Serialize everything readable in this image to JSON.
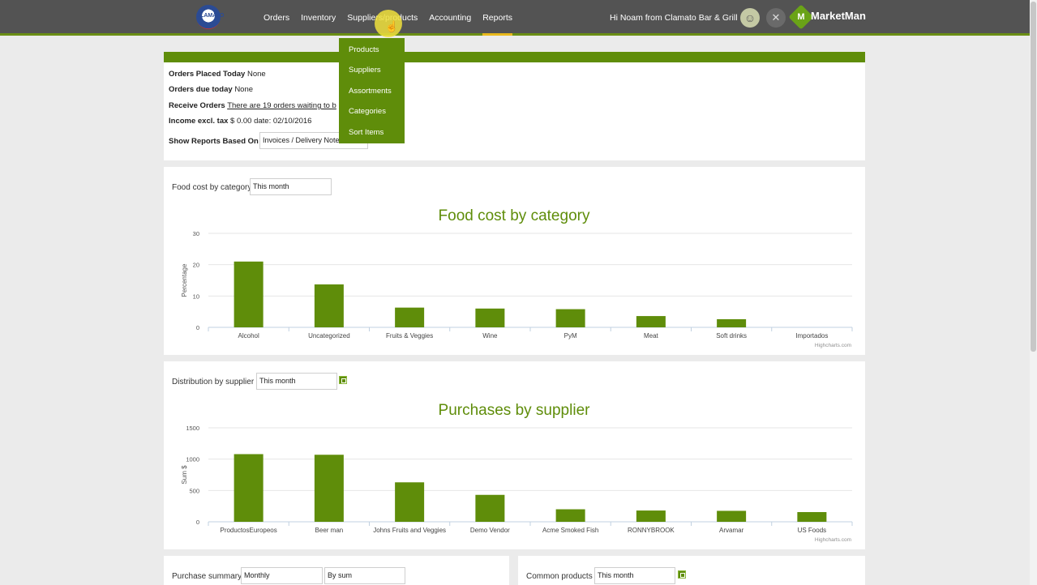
{
  "nav": {
    "logo_text": "CLAMATO",
    "items": [
      {
        "label": "Orders"
      },
      {
        "label": "Inventory"
      },
      {
        "label": "Suppliers/products"
      },
      {
        "label": "Accounting"
      },
      {
        "label": "Reports"
      }
    ],
    "greeting": "Hi Noam from Clamato Bar & Grill",
    "brand": "MarketMan"
  },
  "dropdown": {
    "items": [
      {
        "label": "Products"
      },
      {
        "label": "Suppliers"
      },
      {
        "label": "Assortments"
      },
      {
        "label": "Categories"
      },
      {
        "label": "Sort Items"
      }
    ]
  },
  "info": {
    "orders_placed_label": "Orders Placed Today",
    "orders_placed_value": "None",
    "orders_due_label": "Orders due today",
    "orders_due_value": "None",
    "receive_label": "Receive Orders",
    "receive_link": "There are 19 orders waiting to b",
    "income_label": "Income excl. tax",
    "income_value": "$ 0.00 date: 02/10/2016",
    "reports_based_label": "Show Reports Based On",
    "reports_based_value": "Invoices / Delivery Notes"
  },
  "food_cost": {
    "control_label": "Food cost by category",
    "period": "This month",
    "credit": "Highcharts.com"
  },
  "supplier": {
    "control_label": "Distribution by supplier",
    "period": "This month",
    "credit": "Highcharts.com"
  },
  "bottom": {
    "purchase_label": "Purchase summary",
    "purchase_period": "Monthly",
    "purchase_by": "By sum",
    "common_label": "Common products",
    "common_period": "This month"
  },
  "colors": {
    "accent": "#5f8d0a",
    "nav_bg": "#535353",
    "active_underline": "#e8b81c"
  },
  "chart_data": [
    {
      "type": "bar",
      "title": "Food cost by category",
      "ylabel": "Percentage",
      "xlabel": "",
      "ylim": [
        0,
        30
      ],
      "yticks": [
        0,
        10,
        20,
        30
      ],
      "categories": [
        "Alcohol",
        "Uncategorized",
        "Fruits & Veggies",
        "Wine",
        "PyM",
        "Meat",
        "Soft drinks",
        "Importados"
      ],
      "values": [
        21,
        13.7,
        6.3,
        6.0,
        5.8,
        3.6,
        2.6,
        0
      ],
      "grid": true,
      "legend": "none"
    },
    {
      "type": "bar",
      "title": "Purchases by supplier",
      "ylabel": "Sum $",
      "xlabel": "",
      "ylim": [
        0,
        1500
      ],
      "yticks": [
        0,
        500,
        1000,
        1500
      ],
      "categories": [
        "ProductosEuropeos",
        "Beer man",
        "Johns Fruits and Veggies",
        "Demo Vendor",
        "Acme Smoked Fish",
        "RONNYBROOK",
        "Arvamar",
        "US Foods"
      ],
      "values": [
        1080,
        1070,
        630,
        430,
        200,
        180,
        175,
        155
      ],
      "grid": true,
      "legend": "none"
    }
  ]
}
